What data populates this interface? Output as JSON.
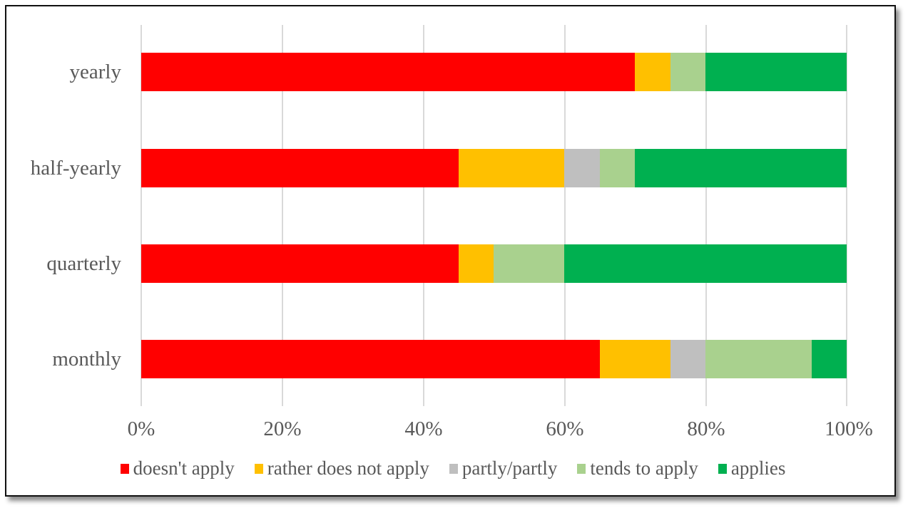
{
  "chart_data": {
    "type": "bar",
    "orientation": "horizontal",
    "stacked": "percent",
    "title": "",
    "xlabel": "",
    "ylabel": "",
    "xlim": [
      0,
      100
    ],
    "grid": true,
    "legend_position": "bottom",
    "categories": [
      "yearly",
      "half-yearly",
      "quarterly",
      "monthly"
    ],
    "x_ticks": [
      "0%",
      "20%",
      "40%",
      "60%",
      "80%",
      "100%"
    ],
    "series": [
      {
        "name": "doesn't apply",
        "color": "#ff0000",
        "values": [
          70,
          45,
          45,
          65
        ]
      },
      {
        "name": "rather does not apply",
        "color": "#ffc000",
        "values": [
          5,
          15,
          5,
          10
        ]
      },
      {
        "name": "partly/partly",
        "color": "#bfbfbf",
        "values": [
          0,
          5,
          0,
          5
        ]
      },
      {
        "name": "tends to apply",
        "color": "#a9d18e",
        "values": [
          5,
          5,
          10,
          15
        ]
      },
      {
        "name": "applies",
        "color": "#00b050",
        "values": [
          20,
          30,
          40,
          5
        ]
      }
    ]
  },
  "labels": {
    "categories": [
      "yearly",
      "half-yearly",
      "quarterly",
      "monthly"
    ],
    "ticks": [
      "0%",
      "20%",
      "40%",
      "60%",
      "80%",
      "100%"
    ],
    "legend": [
      "doesn't apply",
      "rather does not apply",
      "partly/partly",
      "tends to apply",
      "applies"
    ]
  }
}
